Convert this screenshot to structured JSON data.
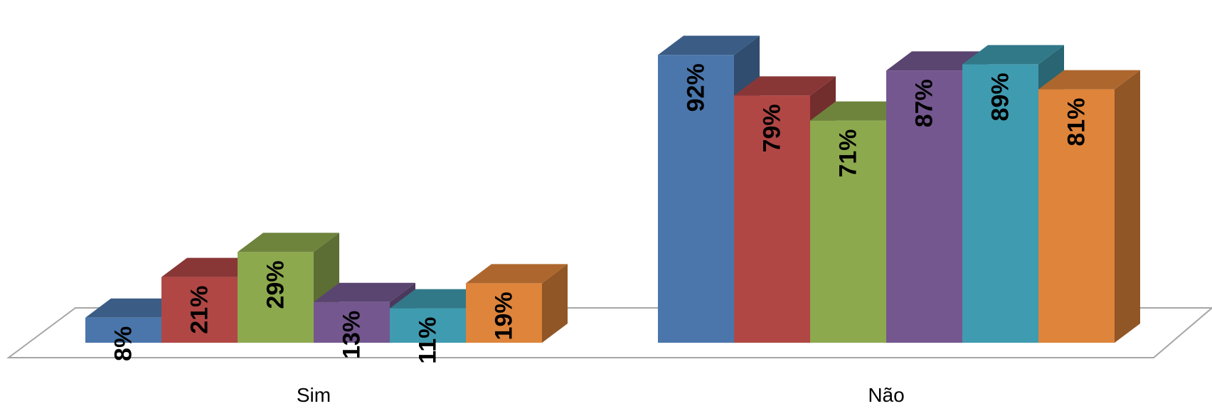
{
  "chart_data": {
    "type": "bar",
    "variant": "3d-clustered",
    "categories": [
      "Sim",
      "Não"
    ],
    "series": [
      {
        "values": [
          8,
          92
        ],
        "labels": [
          "8%",
          "92%"
        ],
        "color": "#4a76ab"
      },
      {
        "values": [
          21,
          79
        ],
        "labels": [
          "21%",
          "79%"
        ],
        "color": "#b04745"
      },
      {
        "values": [
          29,
          71
        ],
        "labels": [
          "29%",
          "71%"
        ],
        "color": "#8da94e"
      },
      {
        "values": [
          13,
          87
        ],
        "labels": [
          "13%",
          "87%"
        ],
        "color": "#74578f"
      },
      {
        "values": [
          11,
          89
        ],
        "labels": [
          "11%",
          "89%"
        ],
        "color": "#3f9bb0"
      },
      {
        "values": [
          19,
          81
        ],
        "labels": [
          "19%",
          "81%"
        ],
        "color": "#de843b"
      }
    ],
    "ylim": [
      0,
      100
    ],
    "grid": false,
    "legend": "none",
    "title": "",
    "xlabel": "",
    "ylabel": ""
  }
}
